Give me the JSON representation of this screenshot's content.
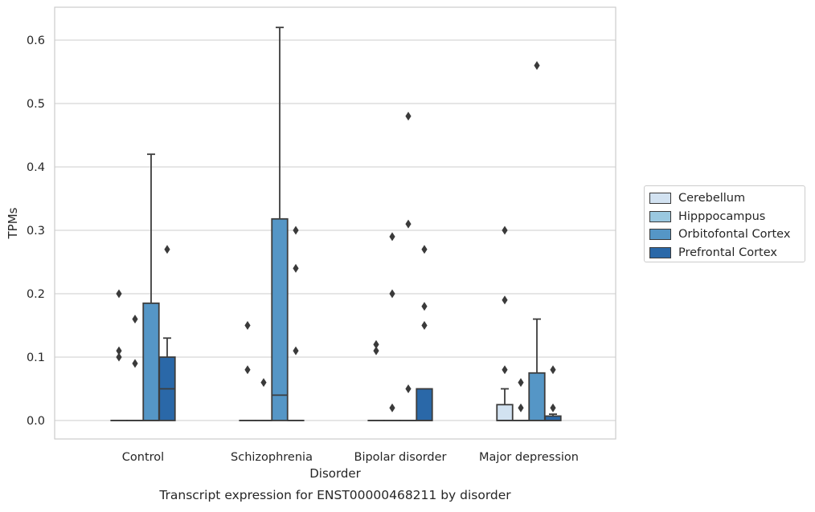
{
  "chart_data": {
    "type": "box",
    "xlabel": "Disorder",
    "ylabel": "TPMs",
    "caption": "Transcript expression for ENST00000468211 by disorder",
    "categories": [
      "Control",
      "Schizophrenia",
      "Bipolar disorder",
      "Major depression"
    ],
    "y_ticks": [
      "0.0",
      "0.1",
      "0.2",
      "0.3",
      "0.4",
      "0.5",
      "0.6"
    ],
    "ylim": [
      -0.03,
      0.65
    ],
    "grid": "horizontal",
    "legend_position": "right",
    "series": [
      {
        "name": "Cerebellum",
        "color": "#d2e2f1",
        "boxes": [
          {
            "q1": 0,
            "median": 0,
            "q3": 0,
            "whisker_low": 0,
            "whisker_high": 0,
            "outliers": [
              0.2,
              0.11,
              0.1
            ]
          },
          {
            "q1": 0,
            "median": 0,
            "q3": 0,
            "whisker_low": 0,
            "whisker_high": 0,
            "outliers": [
              0.15,
              0.08
            ]
          },
          {
            "q1": 0,
            "median": 0,
            "q3": 0,
            "whisker_low": 0,
            "whisker_high": 0,
            "outliers": [
              0.12,
              0.11
            ]
          },
          {
            "q1": 0,
            "median": 0,
            "q3": 0.025,
            "whisker_low": 0,
            "whisker_high": 0.05,
            "outliers": [
              0.3,
              0.19,
              0.08
            ]
          }
        ]
      },
      {
        "name": "Hipppocampus",
        "color": "#9ac8e0",
        "boxes": [
          {
            "q1": 0,
            "median": 0,
            "q3": 0,
            "whisker_low": 0,
            "whisker_high": 0,
            "outliers": [
              0.16,
              0.09
            ]
          },
          {
            "q1": 0,
            "median": 0,
            "q3": 0,
            "whisker_low": 0,
            "whisker_high": 0,
            "outliers": [
              0.06
            ]
          },
          {
            "q1": 0,
            "median": 0,
            "q3": 0,
            "whisker_low": 0,
            "whisker_high": 0,
            "outliers": [
              0.29,
              0.2,
              0.02
            ]
          },
          {
            "q1": 0,
            "median": 0,
            "q3": 0,
            "whisker_low": 0,
            "whisker_high": 0,
            "outliers": [
              0.06,
              0.02
            ]
          }
        ]
      },
      {
        "name": "Orbitofontal Cortex",
        "color": "#5596c6",
        "boxes": [
          {
            "q1": 0,
            "median": 0,
            "q3": 0.185,
            "whisker_low": 0,
            "whisker_high": 0.42,
            "outliers": []
          },
          {
            "q1": 0,
            "median": 0.04,
            "q3": 0.318,
            "whisker_low": 0,
            "whisker_high": 0.62,
            "outliers": []
          },
          {
            "q1": 0,
            "median": 0,
            "q3": 0,
            "whisker_low": 0,
            "whisker_high": 0,
            "outliers": [
              0.48,
              0.31,
              0.05
            ]
          },
          {
            "q1": 0,
            "median": 0,
            "q3": 0.075,
            "whisker_low": 0,
            "whisker_high": 0.16,
            "outliers": [
              0.56
            ]
          }
        ]
      },
      {
        "name": "Prefrontal Cortex",
        "color": "#2a68a8",
        "boxes": [
          {
            "q1": 0,
            "median": 0.05,
            "q3": 0.1,
            "whisker_low": 0,
            "whisker_high": 0.13,
            "outliers": [
              0.27
            ]
          },
          {
            "q1": 0,
            "median": 0,
            "q3": 0,
            "whisker_low": 0,
            "whisker_high": 0,
            "outliers": [
              0.3,
              0.24,
              0.11
            ]
          },
          {
            "q1": 0,
            "median": 0,
            "q3": 0.05,
            "whisker_low": 0,
            "whisker_high": 0.05,
            "outliers": [
              0.27,
              0.18,
              0.15
            ]
          },
          {
            "q1": 0,
            "median": 0,
            "q3": 0.007,
            "whisker_low": 0,
            "whisker_high": 0.01,
            "outliers": [
              0.08,
              0.02
            ]
          }
        ]
      }
    ]
  }
}
